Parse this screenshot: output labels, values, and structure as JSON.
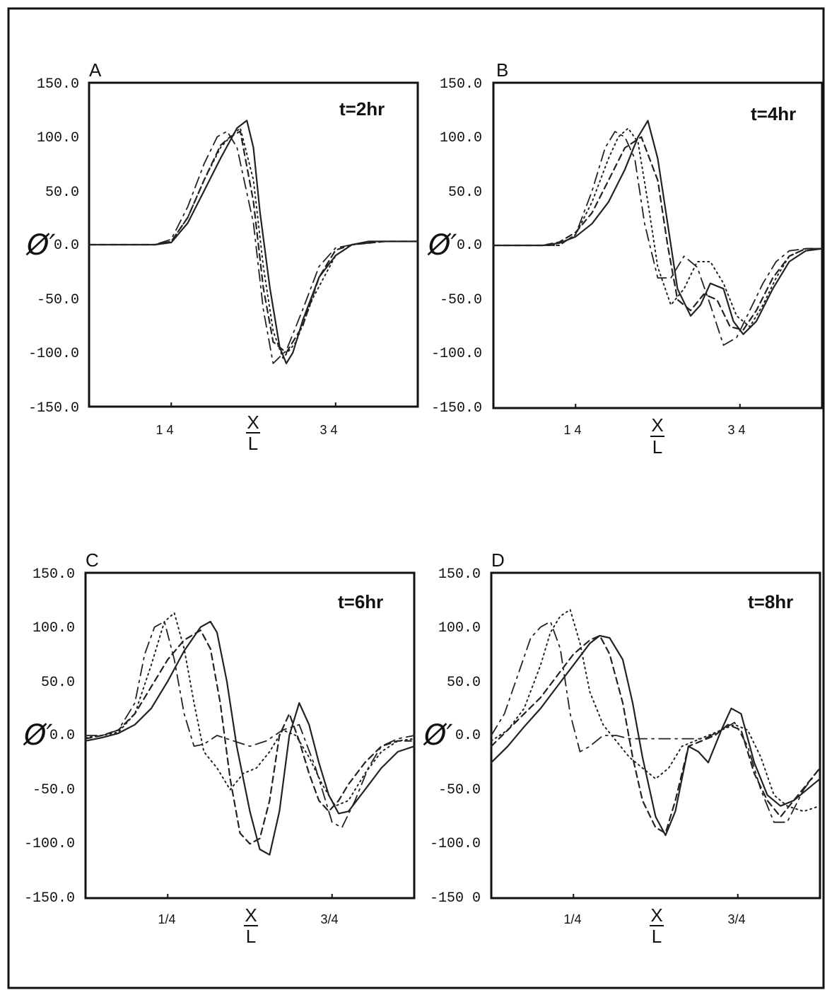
{
  "chart_data": [
    {
      "type": "line",
      "panel_label": "A",
      "annotation": "t=2hr",
      "ylabel": "Ø′",
      "xlabel_num": "X",
      "xlabel_den": "L",
      "ylim": [
        -150,
        150
      ],
      "xlim": [
        0,
        1
      ],
      "yticks": [
        "150.0",
        "100.0",
        "50.0",
        "0.0",
        "-50.0",
        "-100.0",
        "-150.0"
      ],
      "xticks": [
        {
          "x": 0.25,
          "label": "1 4"
        },
        {
          "x": 0.75,
          "label": "3 4"
        }
      ],
      "series": [
        {
          "style": "solid",
          "x": [
            0,
            0.15,
            0.2,
            0.25,
            0.3,
            0.35,
            0.4,
            0.45,
            0.48,
            0.5,
            0.52,
            0.55,
            0.58,
            0.6,
            0.62,
            0.65,
            0.7,
            0.75,
            0.8,
            0.85,
            0.9,
            1.0
          ],
          "y": [
            0,
            0,
            0,
            2,
            20,
            50,
            80,
            108,
            115,
            90,
            30,
            -40,
            -95,
            -110,
            -100,
            -70,
            -30,
            -10,
            0,
            3,
            3,
            3
          ]
        },
        {
          "style": "dashed",
          "x": [
            0,
            0.15,
            0.2,
            0.25,
            0.3,
            0.35,
            0.4,
            0.43,
            0.46,
            0.5,
            0.53,
            0.56,
            0.6,
            0.65,
            0.7,
            0.75,
            0.8,
            0.9,
            1.0
          ],
          "y": [
            0,
            0,
            0,
            3,
            25,
            60,
            92,
            100,
            105,
            40,
            -40,
            -90,
            -100,
            -75,
            -30,
            -5,
            0,
            3,
            3
          ]
        },
        {
          "style": "dotted",
          "x": [
            0,
            0.15,
            0.2,
            0.25,
            0.3,
            0.35,
            0.4,
            0.43,
            0.46,
            0.5,
            0.53,
            0.56,
            0.59,
            0.63,
            0.68,
            0.75,
            0.8,
            0.9,
            1.0
          ],
          "y": [
            0,
            0,
            0,
            3,
            25,
            60,
            90,
            100,
            108,
            60,
            -20,
            -80,
            -105,
            -90,
            -50,
            -10,
            0,
            3,
            3
          ]
        },
        {
          "style": "dashdot",
          "x": [
            0,
            0.15,
            0.2,
            0.25,
            0.3,
            0.35,
            0.39,
            0.42,
            0.45,
            0.5,
            0.53,
            0.56,
            0.6,
            0.65,
            0.7,
            0.75,
            0.8,
            0.9,
            1.0
          ],
          "y": [
            0,
            0,
            0,
            5,
            35,
            75,
            100,
            105,
            90,
            20,
            -60,
            -110,
            -98,
            -60,
            -20,
            -3,
            0,
            3,
            3
          ]
        }
      ]
    },
    {
      "type": "line",
      "panel_label": "B",
      "annotation": "t=4hr",
      "ylabel": "Ø′",
      "xlabel_num": "X",
      "xlabel_den": "L",
      "ylim": [
        -150,
        150
      ],
      "xlim": [
        0,
        1
      ],
      "yticks": [
        "150.0",
        "100.0",
        "50.0",
        "0.0",
        "-50.0",
        "-100.0",
        "-150.0"
      ],
      "xticks": [
        {
          "x": 0.25,
          "label": "1 4"
        },
        {
          "x": 0.75,
          "label": "3 4"
        }
      ],
      "series": [
        {
          "style": "solid",
          "x": [
            0,
            0.15,
            0.2,
            0.25,
            0.3,
            0.35,
            0.4,
            0.44,
            0.47,
            0.5,
            0.53,
            0.56,
            0.6,
            0.63,
            0.66,
            0.7,
            0.73,
            0.76,
            0.8,
            0.85,
            0.9,
            0.95,
            1.0
          ],
          "y": [
            0,
            0,
            2,
            8,
            20,
            40,
            70,
            100,
            115,
            80,
            20,
            -40,
            -65,
            -55,
            -35,
            -40,
            -70,
            -82,
            -70,
            -40,
            -15,
            -5,
            -3
          ]
        },
        {
          "style": "dashed",
          "x": [
            0,
            0.15,
            0.2,
            0.25,
            0.3,
            0.35,
            0.4,
            0.45,
            0.5,
            0.53,
            0.56,
            0.6,
            0.64,
            0.68,
            0.72,
            0.76,
            0.8,
            0.85,
            0.9,
            0.95,
            1.0
          ],
          "y": [
            0,
            0,
            3,
            12,
            30,
            60,
            90,
            100,
            60,
            0,
            -50,
            -60,
            -45,
            -50,
            -75,
            -78,
            -60,
            -30,
            -10,
            -3,
            -3
          ]
        },
        {
          "style": "dotted",
          "x": [
            0,
            0.15,
            0.2,
            0.25,
            0.3,
            0.35,
            0.38,
            0.41,
            0.44,
            0.47,
            0.5,
            0.54,
            0.58,
            0.62,
            0.66,
            0.7,
            0.74,
            0.78,
            0.82,
            0.86,
            0.9,
            0.95,
            1.0
          ],
          "y": [
            0,
            0,
            0,
            10,
            40,
            80,
            100,
            108,
            95,
            40,
            -20,
            -55,
            -40,
            -15,
            -15,
            -35,
            -65,
            -75,
            -55,
            -30,
            -10,
            -3,
            -3
          ]
        },
        {
          "style": "dashdot",
          "x": [
            0,
            0.15,
            0.2,
            0.25,
            0.3,
            0.34,
            0.37,
            0.4,
            0.43,
            0.46,
            0.5,
            0.54,
            0.58,
            0.62,
            0.66,
            0.7,
            0.74,
            0.78,
            0.82,
            0.86,
            0.9,
            0.95,
            1.0
          ],
          "y": [
            0,
            0,
            0,
            10,
            50,
            90,
            105,
            100,
            80,
            20,
            -30,
            -30,
            -10,
            -20,
            -55,
            -92,
            -85,
            -60,
            -35,
            -15,
            -5,
            -3,
            -3
          ]
        }
      ]
    },
    {
      "type": "line",
      "panel_label": "C",
      "annotation": "t=6hr",
      "ylabel": "Ø′",
      "xlabel_num": "X",
      "xlabel_den": "L",
      "ylim": [
        -150,
        150
      ],
      "xlim": [
        0,
        1
      ],
      "yticks": [
        "150.0",
        "100.0",
        "50.0",
        "0.0",
        "-50.0",
        "-100.0",
        "-150.0"
      ],
      "xticks": [
        {
          "x": 0.25,
          "label": "1/4"
        },
        {
          "x": 0.75,
          "label": "3/4"
        }
      ],
      "series": [
        {
          "style": "solid",
          "x": [
            0,
            0.05,
            0.1,
            0.15,
            0.2,
            0.25,
            0.3,
            0.35,
            0.38,
            0.4,
            0.43,
            0.46,
            0.5,
            0.53,
            0.56,
            0.59,
            0.62,
            0.65,
            0.68,
            0.71,
            0.74,
            0.77,
            0.8,
            0.85,
            0.9,
            0.95,
            1.0
          ],
          "y": [
            -5,
            -2,
            2,
            10,
            25,
            50,
            78,
            100,
            105,
            95,
            50,
            -10,
            -70,
            -105,
            -110,
            -70,
            0,
            30,
            10,
            -25,
            -55,
            -72,
            -70,
            -50,
            -30,
            -15,
            -10
          ]
        },
        {
          "style": "dashed",
          "x": [
            0,
            0.05,
            0.1,
            0.15,
            0.2,
            0.25,
            0.3,
            0.35,
            0.38,
            0.41,
            0.44,
            0.47,
            0.5,
            0.53,
            0.56,
            0.59,
            0.62,
            0.65,
            0.68,
            0.71,
            0.74,
            0.77,
            0.8,
            0.85,
            0.9,
            0.95,
            1.0
          ],
          "y": [
            -3,
            0,
            5,
            20,
            45,
            70,
            88,
            97,
            80,
            30,
            -40,
            -90,
            -100,
            -95,
            -60,
            0,
            20,
            -5,
            -35,
            -60,
            -70,
            -60,
            -45,
            -25,
            -10,
            -5,
            -5
          ]
        },
        {
          "style": "dotted",
          "x": [
            0,
            0.05,
            0.1,
            0.15,
            0.2,
            0.24,
            0.27,
            0.3,
            0.33,
            0.36,
            0.4,
            0.44,
            0.48,
            0.52,
            0.56,
            0.6,
            0.64,
            0.68,
            0.72,
            0.76,
            0.8,
            0.85,
            0.9,
            0.95,
            1.0
          ],
          "y": [
            -2,
            0,
            3,
            20,
            65,
            105,
            113,
            80,
            30,
            -15,
            -30,
            -50,
            -35,
            -30,
            -15,
            5,
            0,
            -20,
            -45,
            -65,
            -60,
            -35,
            -15,
            -5,
            -3
          ]
        },
        {
          "style": "dashdot",
          "x": [
            0,
            0.05,
            0.1,
            0.15,
            0.18,
            0.21,
            0.24,
            0.27,
            0.3,
            0.33,
            0.36,
            0.4,
            0.45,
            0.5,
            0.55,
            0.6,
            0.65,
            0.7,
            0.75,
            0.78,
            0.82,
            0.86,
            0.9,
            0.95,
            1.0
          ],
          "y": [
            0,
            0,
            5,
            30,
            75,
            100,
            105,
            70,
            20,
            -10,
            -8,
            0,
            -5,
            -10,
            -5,
            5,
            10,
            -30,
            -80,
            -85,
            -60,
            -30,
            -10,
            -3,
            0
          ]
        }
      ]
    },
    {
      "type": "line",
      "panel_label": "D",
      "annotation": "t=8hr",
      "ylabel": "Ø′",
      "xlabel_num": "X",
      "xlabel_den": "L",
      "ylim": [
        -150,
        150
      ],
      "xlim": [
        0,
        1
      ],
      "yticks": [
        "150.0",
        "100.0",
        "50.0",
        "0.0",
        "-50.0",
        "-100.0",
        "-150 0"
      ],
      "xticks": [
        {
          "x": 0.25,
          "label": "1/4"
        },
        {
          "x": 0.75,
          "label": "3/4"
        }
      ],
      "series": [
        {
          "style": "solid",
          "x": [
            0,
            0.05,
            0.1,
            0.15,
            0.2,
            0.25,
            0.3,
            0.33,
            0.36,
            0.4,
            0.43,
            0.46,
            0.5,
            0.53,
            0.56,
            0.6,
            0.63,
            0.66,
            0.7,
            0.73,
            0.76,
            0.8,
            0.84,
            0.88,
            0.92,
            0.96,
            1.0
          ],
          "y": [
            -25,
            -10,
            8,
            25,
            45,
            65,
            85,
            92,
            90,
            70,
            30,
            -20,
            -75,
            -92,
            -70,
            -10,
            -15,
            -25,
            5,
            25,
            20,
            -25,
            -55,
            -65,
            -60,
            -50,
            -40
          ]
        },
        {
          "style": "dashed",
          "x": [
            0,
            0.05,
            0.1,
            0.15,
            0.2,
            0.25,
            0.3,
            0.33,
            0.36,
            0.4,
            0.43,
            0.46,
            0.5,
            0.53,
            0.56,
            0.6,
            0.64,
            0.68,
            0.72,
            0.76,
            0.8,
            0.84,
            0.88,
            0.92,
            0.96,
            1.0
          ],
          "y": [
            -10,
            5,
            20,
            35,
            55,
            75,
            88,
            92,
            75,
            30,
            -20,
            -60,
            -85,
            -90,
            -60,
            -10,
            -5,
            0,
            10,
            5,
            -35,
            -60,
            -75,
            -60,
            -45,
            -30
          ]
        },
        {
          "style": "dotted",
          "x": [
            0,
            0.05,
            0.1,
            0.15,
            0.18,
            0.21,
            0.24,
            0.27,
            0.3,
            0.34,
            0.38,
            0.42,
            0.46,
            0.5,
            0.54,
            0.58,
            0.62,
            0.66,
            0.7,
            0.74,
            0.78,
            0.82,
            0.86,
            0.9,
            0.95,
            1.0
          ],
          "y": [
            -5,
            5,
            25,
            65,
            95,
            110,
            116,
            85,
            40,
            10,
            -5,
            -20,
            -30,
            -40,
            -30,
            -10,
            -5,
            0,
            5,
            10,
            5,
            -20,
            -55,
            -65,
            -70,
            -65
          ]
        },
        {
          "style": "dashdot",
          "x": [
            0,
            0.04,
            0.08,
            0.12,
            0.15,
            0.18,
            0.21,
            0.24,
            0.27,
            0.3,
            0.34,
            0.38,
            0.42,
            0.46,
            0.5,
            0.55,
            0.6,
            0.65,
            0.7,
            0.74,
            0.78,
            0.82,
            0.86,
            0.9,
            0.95,
            1.0
          ],
          "y": [
            0,
            20,
            55,
            90,
            100,
            105,
            80,
            20,
            -15,
            -10,
            0,
            0,
            -3,
            -3,
            -3,
            -3,
            -3,
            -3,
            5,
            12,
            -10,
            -50,
            -80,
            -80,
            -50,
            -30
          ]
        }
      ]
    }
  ]
}
